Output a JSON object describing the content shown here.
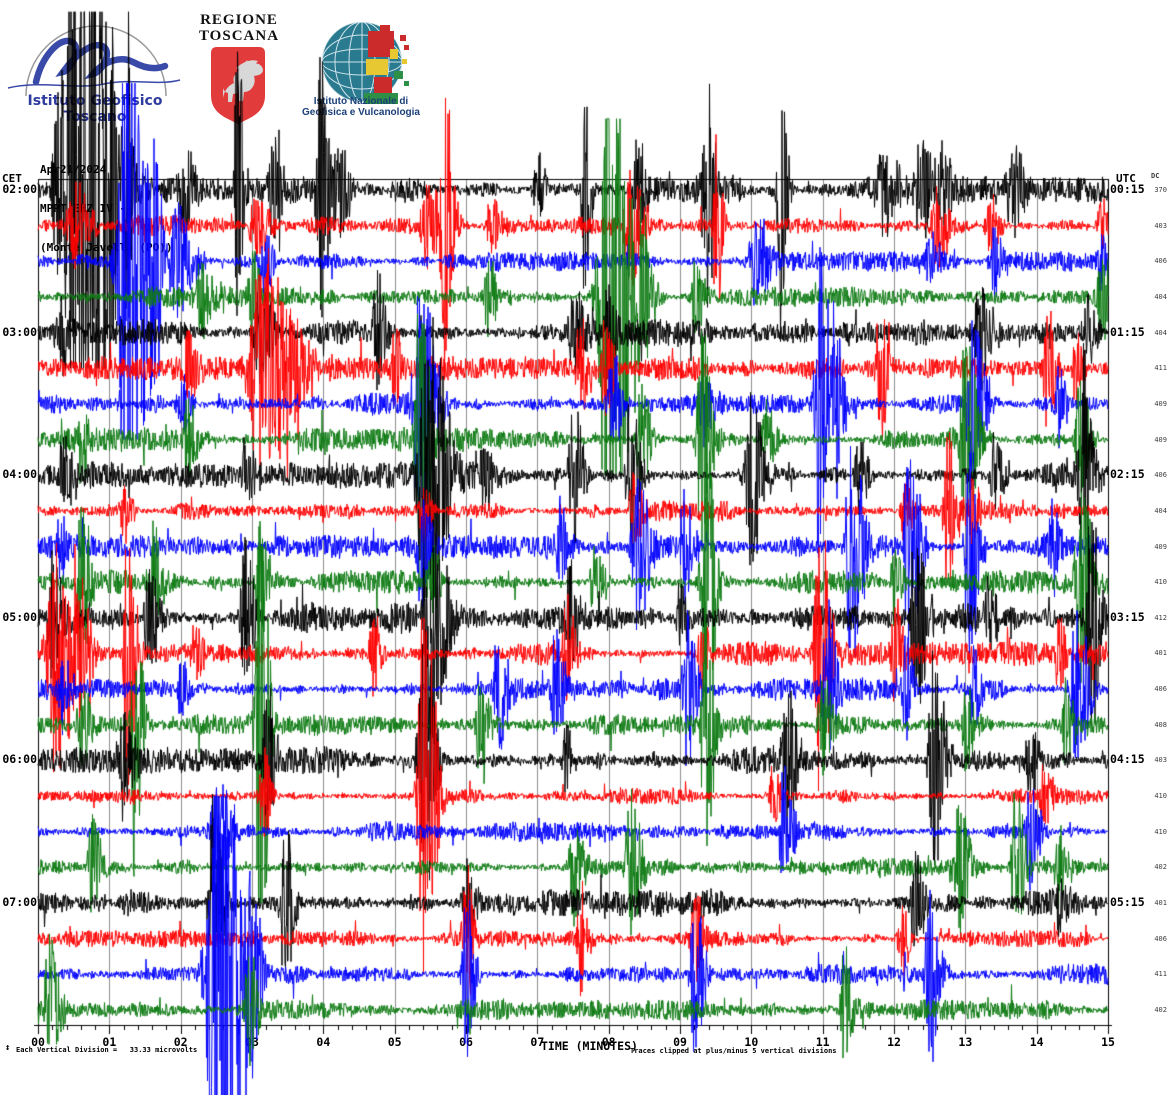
{
  "header": {
    "igt_text": "Istituto Geofisico Toscano",
    "regione_line1": "REGIONE",
    "regione_line2": "TOSCANA",
    "ingv_line1": "Istituto Nazionale di",
    "ingv_line2": "Geofisica e Vulcanologia"
  },
  "station_block": {
    "line1": "Apr21/2024",
    "line2": "MPPT EHZ IV --",
    "line3": "(Monte Javello (PO))"
  },
  "axes": {
    "left_header": "CET",
    "right_header": "UTC",
    "dc_header": "DC",
    "x_title": "TIME (MINUTES)",
    "vdiv_symbol": "↕",
    "footer_left": "Each Vertical Division =   33.33 microvolts",
    "footer_right": "Traces clipped at plus/minus 5 vertical divisions"
  },
  "chart_data": {
    "type": "line",
    "subtype": "helicorder-seismogram",
    "title": "MPPT EHZ IV -- (Monte Javello (PO)) Apr21/2024",
    "xlabel": "TIME (MINUTES)",
    "x_range_minutes": [
      0,
      15
    ],
    "x_ticks": [
      "00",
      "01",
      "02",
      "03",
      "04",
      "05",
      "06",
      "07",
      "08",
      "09",
      "10",
      "11",
      "12",
      "13",
      "14",
      "15"
    ],
    "minor_ticks_per_minute": 5,
    "minutes_per_line": 15,
    "clip_divisions": 5,
    "microvolts_per_division": 33.33,
    "grid": true,
    "grid_color": "#8c8c8c",
    "colors": {
      "black": "#000000",
      "red": "#ff0000",
      "blue": "#0000ff",
      "green": "#0d7a12"
    },
    "rows_note": "events = [center_minute, peak_amplitude_px, half_width_minutes]; noise = background noise amplitude px",
    "rows": [
      {
        "color": "black",
        "cet": "02:00",
        "utc": "00:15",
        "dc": "370",
        "noise": 8,
        "events": [
          [
            0.35,
            175,
            0.12
          ],
          [
            0.6,
            300,
            0.2
          ],
          [
            0.85,
            110,
            0.1
          ],
          [
            1.25,
            190,
            0.03
          ],
          [
            2.05,
            60,
            0.07
          ],
          [
            2.8,
            170,
            0.04
          ],
          [
            3.3,
            70,
            0.06
          ],
          [
            3.95,
            145,
            0.05
          ],
          [
            4.15,
            55,
            0.1
          ],
          [
            7.0,
            35,
            0.05
          ],
          [
            7.65,
            130,
            0.04
          ],
          [
            8.4,
            55,
            0.06
          ],
          [
            9.35,
            145,
            0.05
          ],
          [
            10.4,
            150,
            0.04
          ],
          [
            11.85,
            45,
            0.1
          ],
          [
            12.35,
            60,
            0.08
          ],
          [
            12.65,
            55,
            0.07
          ],
          [
            13.65,
            45,
            0.08
          ]
        ]
      },
      {
        "color": "red",
        "cet": "",
        "utc": "",
        "dc": "403",
        "noise": 6,
        "events": [
          [
            0.5,
            45,
            0.1
          ],
          [
            3.05,
            40,
            0.08
          ],
          [
            5.45,
            55,
            0.08
          ],
          [
            5.7,
            170,
            0.05
          ],
          [
            6.35,
            35,
            0.06
          ],
          [
            8.3,
            60,
            0.08
          ],
          [
            9.5,
            115,
            0.04
          ],
          [
            12.6,
            45,
            0.08
          ],
          [
            13.35,
            35,
            0.06
          ],
          [
            14.9,
            30,
            0.05
          ]
        ]
      },
      {
        "color": "blue",
        "cet": "",
        "utc": "",
        "dc": "406",
        "noise": 6,
        "events": [
          [
            1.25,
            300,
            0.12
          ],
          [
            1.6,
            130,
            0.06
          ],
          [
            1.95,
            60,
            0.1
          ],
          [
            3.15,
            40,
            0.06
          ],
          [
            10.05,
            55,
            0.08
          ],
          [
            12.5,
            35,
            0.06
          ],
          [
            13.4,
            38,
            0.06
          ],
          [
            14.9,
            40,
            0.05
          ]
        ]
      },
      {
        "color": "green",
        "cet": "",
        "utc": "",
        "dc": "404",
        "noise": 6,
        "events": [
          [
            2.3,
            45,
            0.08
          ],
          [
            3.0,
            50,
            0.05
          ],
          [
            6.3,
            45,
            0.06
          ],
          [
            8.0,
            300,
            0.13
          ],
          [
            8.4,
            90,
            0.08
          ],
          [
            9.2,
            42,
            0.06
          ],
          [
            14.9,
            48,
            0.06
          ]
        ]
      },
      {
        "color": "black",
        "cet": "03:00",
        "utc": "01:15",
        "dc": "404",
        "noise": 8,
        "events": [
          [
            0.3,
            40,
            0.06
          ],
          [
            3.1,
            55,
            0.08
          ],
          [
            4.75,
            60,
            0.06
          ],
          [
            7.5,
            45,
            0.08
          ],
          [
            8.0,
            70,
            0.05
          ],
          [
            13.2,
            55,
            0.08
          ],
          [
            14.7,
            40,
            0.06
          ]
        ]
      },
      {
        "color": "red",
        "cet": "",
        "utc": "",
        "dc": "411",
        "noise": 7,
        "events": [
          [
            2.1,
            45,
            0.06
          ],
          [
            3.15,
            125,
            0.18
          ],
          [
            3.55,
            70,
            0.1
          ],
          [
            5.0,
            40,
            0.05
          ],
          [
            7.6,
            50,
            0.06
          ],
          [
            7.95,
            60,
            0.05
          ],
          [
            11.8,
            70,
            0.05
          ],
          [
            14.15,
            72,
            0.05
          ],
          [
            14.55,
            40,
            0.05
          ]
        ]
      },
      {
        "color": "blue",
        "cet": "",
        "utc": "",
        "dc": "409",
        "noise": 7,
        "events": [
          [
            2.0,
            35,
            0.06
          ],
          [
            5.35,
            130,
            0.09
          ],
          [
            8.05,
            60,
            0.05
          ],
          [
            9.3,
            40,
            0.06
          ],
          [
            10.95,
            165,
            0.07
          ],
          [
            11.15,
            95,
            0.06
          ],
          [
            13.1,
            85,
            0.08
          ],
          [
            14.3,
            40,
            0.05
          ]
        ]
      },
      {
        "color": "green",
        "cet": "",
        "utc": "",
        "dc": "409",
        "noise": 7,
        "events": [
          [
            0.6,
            40,
            0.06
          ],
          [
            2.1,
            45,
            0.06
          ],
          [
            5.35,
            170,
            0.06
          ],
          [
            8.45,
            60,
            0.06
          ],
          [
            9.3,
            135,
            0.06
          ],
          [
            10.2,
            40,
            0.06
          ],
          [
            13.0,
            100,
            0.08
          ],
          [
            14.6,
            65,
            0.06
          ]
        ]
      },
      {
        "color": "black",
        "cet": "04:00",
        "utc": "02:15",
        "dc": "406",
        "noise": 8,
        "events": [
          [
            0.35,
            45,
            0.06
          ],
          [
            2.9,
            40,
            0.06
          ],
          [
            5.45,
            172,
            0.12
          ],
          [
            6.25,
            45,
            0.05
          ],
          [
            7.5,
            85,
            0.06
          ],
          [
            8.3,
            85,
            0.06
          ],
          [
            10.0,
            100,
            0.08
          ],
          [
            11.5,
            42,
            0.06
          ],
          [
            13.4,
            40,
            0.06
          ],
          [
            14.65,
            128,
            0.06
          ]
        ]
      },
      {
        "color": "red",
        "cet": "",
        "utc": "",
        "dc": "404",
        "noise": 6,
        "events": [
          [
            1.2,
            35,
            0.05
          ],
          [
            5.4,
            35,
            0.05
          ],
          [
            8.35,
            45,
            0.06
          ],
          [
            12.15,
            40,
            0.05
          ],
          [
            12.75,
            85,
            0.06
          ],
          [
            13.1,
            42,
            0.05
          ]
        ]
      },
      {
        "color": "blue",
        "cet": "",
        "utc": "",
        "dc": "409",
        "noise": 7,
        "events": [
          [
            0.3,
            35,
            0.05
          ],
          [
            5.35,
            65,
            0.06
          ],
          [
            7.3,
            45,
            0.05
          ],
          [
            8.4,
            85,
            0.08
          ],
          [
            9.05,
            62,
            0.06
          ],
          [
            11.4,
            120,
            0.08
          ],
          [
            12.2,
            120,
            0.07
          ],
          [
            13.05,
            132,
            0.06
          ],
          [
            14.2,
            50,
            0.05
          ]
        ]
      },
      {
        "color": "green",
        "cet": "",
        "utc": "",
        "dc": "410",
        "noise": 7,
        "events": [
          [
            0.6,
            85,
            0.06
          ],
          [
            1.6,
            60,
            0.06
          ],
          [
            3.1,
            60,
            0.06
          ],
          [
            5.5,
            40,
            0.06
          ],
          [
            7.8,
            45,
            0.06
          ],
          [
            9.35,
            165,
            0.06
          ],
          [
            12.0,
            42,
            0.05
          ],
          [
            14.6,
            105,
            0.07
          ]
        ]
      },
      {
        "color": "black",
        "cet": "05:00",
        "utc": "03:15",
        "dc": "412",
        "noise": 9,
        "events": [
          [
            0.2,
            65,
            0.06
          ],
          [
            1.55,
            60,
            0.06
          ],
          [
            2.9,
            80,
            0.06
          ],
          [
            5.5,
            132,
            0.09
          ],
          [
            7.45,
            60,
            0.05
          ],
          [
            9.0,
            40,
            0.05
          ],
          [
            12.3,
            100,
            0.07
          ],
          [
            13.3,
            42,
            0.05
          ],
          [
            14.75,
            128,
            0.06
          ]
        ]
      },
      {
        "color": "red",
        "cet": "",
        "utc": "",
        "dc": "401",
        "noise": 7,
        "events": [
          [
            0.25,
            120,
            0.12
          ],
          [
            0.55,
            80,
            0.08
          ],
          [
            1.25,
            155,
            0.05
          ],
          [
            2.2,
            40,
            0.05
          ],
          [
            4.7,
            45,
            0.05
          ],
          [
            7.4,
            60,
            0.05
          ],
          [
            9.3,
            40,
            0.05
          ],
          [
            10.95,
            155,
            0.07
          ],
          [
            12.0,
            60,
            0.05
          ],
          [
            14.3,
            40,
            0.05
          ]
        ]
      },
      {
        "color": "blue",
        "cet": "",
        "utc": "",
        "dc": "406",
        "noise": 7,
        "events": [
          [
            0.35,
            40,
            0.05
          ],
          [
            2.0,
            35,
            0.05
          ],
          [
            6.45,
            65,
            0.06
          ],
          [
            7.25,
            60,
            0.06
          ],
          [
            9.1,
            85,
            0.06
          ],
          [
            11.05,
            85,
            0.06
          ],
          [
            12.15,
            60,
            0.05
          ],
          [
            13.1,
            45,
            0.05
          ],
          [
            14.55,
            85,
            0.08
          ]
        ]
      },
      {
        "color": "green",
        "cet": "",
        "utc": "",
        "dc": "408",
        "noise": 7,
        "events": [
          [
            0.6,
            50,
            0.06
          ],
          [
            1.35,
            152,
            0.05
          ],
          [
            3.1,
            300,
            0.05
          ],
          [
            6.2,
            60,
            0.06
          ],
          [
            9.35,
            122,
            0.06
          ],
          [
            11.0,
            50,
            0.06
          ],
          [
            13.0,
            45,
            0.05
          ],
          [
            14.4,
            45,
            0.05
          ]
        ]
      },
      {
        "color": "black",
        "cet": "06:00",
        "utc": "04:15",
        "dc": "403",
        "noise": 8,
        "events": [
          [
            1.2,
            60,
            0.06
          ],
          [
            3.2,
            92,
            0.05
          ],
          [
            5.4,
            152,
            0.07
          ],
          [
            7.4,
            40,
            0.05
          ],
          [
            10.5,
            85,
            0.06
          ],
          [
            12.55,
            122,
            0.07
          ],
          [
            13.9,
            40,
            0.05
          ]
        ]
      },
      {
        "color": "red",
        "cet": "",
        "utc": "",
        "dc": "410",
        "noise": 5,
        "events": [
          [
            3.15,
            55,
            0.05
          ],
          [
            5.4,
            255,
            0.07
          ],
          [
            10.3,
            35,
            0.05
          ],
          [
            14.1,
            35,
            0.05
          ]
        ]
      },
      {
        "color": "blue",
        "cet": "",
        "utc": "",
        "dc": "410",
        "noise": 6,
        "events": [
          [
            2.5,
            70,
            0.08
          ],
          [
            10.45,
            65,
            0.06
          ],
          [
            13.9,
            60,
            0.06
          ]
        ]
      },
      {
        "color": "green",
        "cet": "",
        "utc": "",
        "dc": "402",
        "noise": 6,
        "events": [
          [
            0.75,
            60,
            0.06
          ],
          [
            7.5,
            60,
            0.06
          ],
          [
            8.3,
            85,
            0.06
          ],
          [
            12.9,
            80,
            0.06
          ],
          [
            13.7,
            85,
            0.06
          ],
          [
            14.3,
            40,
            0.05
          ]
        ]
      },
      {
        "color": "black",
        "cet": "07:00",
        "utc": "05:15",
        "dc": "401",
        "noise": 8,
        "events": [
          [
            2.45,
            112,
            0.06
          ],
          [
            3.45,
            85,
            0.06
          ],
          [
            6.0,
            40,
            0.05
          ],
          [
            12.3,
            55,
            0.06
          ],
          [
            14.3,
            35,
            0.05
          ]
        ]
      },
      {
        "color": "red",
        "cet": "",
        "utc": "",
        "dc": "406",
        "noise": 5,
        "events": [
          [
            6.0,
            80,
            0.05
          ],
          [
            7.6,
            55,
            0.05
          ],
          [
            9.2,
            55,
            0.05
          ],
          [
            12.1,
            40,
            0.05
          ]
        ]
      },
      {
        "color": "blue",
        "cet": "",
        "utc": "",
        "dc": "411",
        "noise": 6,
        "events": [
          [
            2.5,
            320,
            0.13
          ],
          [
            2.95,
            110,
            0.07
          ],
          [
            6.0,
            85,
            0.05
          ],
          [
            9.2,
            80,
            0.06
          ],
          [
            12.5,
            95,
            0.06
          ]
        ]
      },
      {
        "color": "green",
        "cet": "",
        "utc": "",
        "dc": "402",
        "noise": 6,
        "events": [
          [
            0.15,
            85,
            0.06
          ],
          [
            2.95,
            72,
            0.05
          ],
          [
            11.3,
            60,
            0.05
          ]
        ]
      }
    ]
  }
}
